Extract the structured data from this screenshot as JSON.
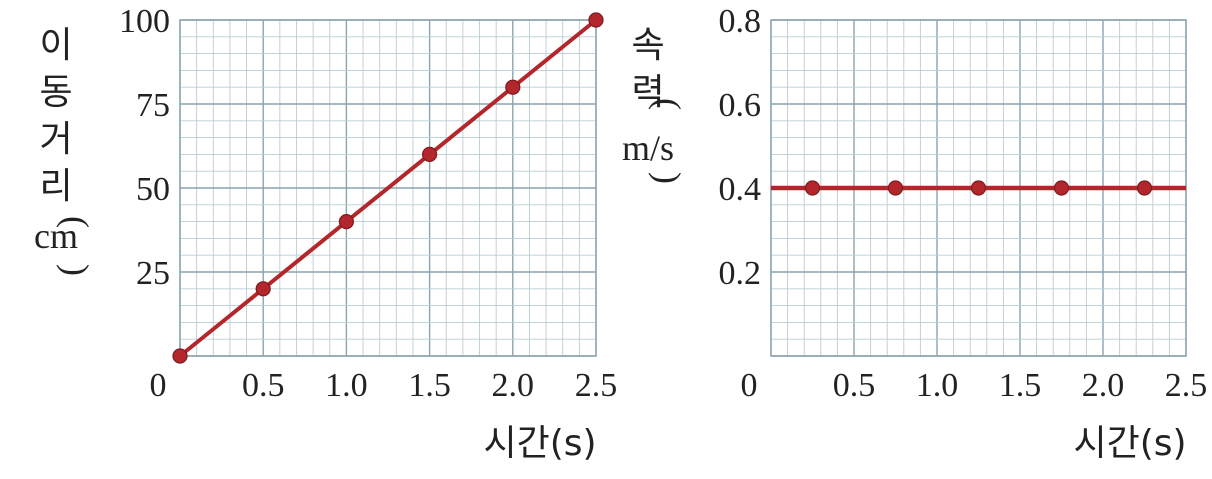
{
  "chart_data": [
    {
      "type": "line",
      "x": [
        0,
        0.5,
        1.0,
        1.5,
        2.0,
        2.5
      ],
      "series": [
        {
          "values": [
            0,
            20,
            40,
            60,
            80,
            100
          ],
          "color": "#b3272c"
        }
      ],
      "xlim": [
        0,
        2.5
      ],
      "ylim": [
        0,
        100
      ],
      "xticks": [
        "0",
        "0.5",
        "1.0",
        "1.5",
        "2.0",
        "2.5"
      ],
      "yticks": [
        "25",
        "50",
        "75",
        "100"
      ],
      "ytick_values": [
        25,
        50,
        75,
        100
      ],
      "xlabel": "시간(s)",
      "ylabel_chars": [
        "이",
        "동",
        "거",
        "리"
      ],
      "ylabel_unit": "cm",
      "grid": true
    },
    {
      "type": "line",
      "x": [
        0.25,
        0.75,
        1.25,
        1.75,
        2.25
      ],
      "series": [
        {
          "values": [
            0.4,
            0.4,
            0.4,
            0.4,
            0.4
          ],
          "color": "#b3272c"
        }
      ],
      "xlim": [
        0,
        2.5
      ],
      "ylim": [
        0,
        0.8
      ],
      "xticks": [
        "0",
        "0.5",
        "1.0",
        "1.5",
        "2.0",
        "2.5"
      ],
      "yticks": [
        "0.2",
        "0.4",
        "0.6",
        "0.8"
      ],
      "ytick_values": [
        0.2,
        0.4,
        0.6,
        0.8
      ],
      "xlabel": "시간(s)",
      "ylabel_chars": [
        "속",
        "력"
      ],
      "ylabel_unit": "m/s",
      "grid": true
    }
  ]
}
